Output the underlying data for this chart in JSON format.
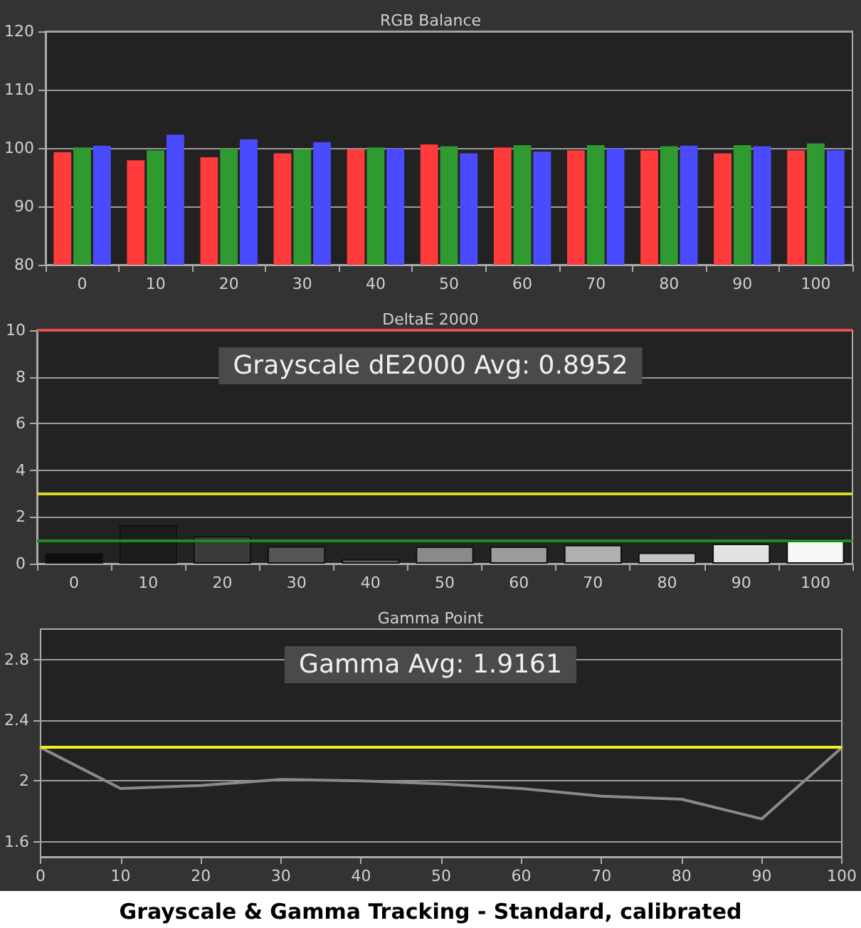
{
  "chart_data": [
    {
      "type": "bar",
      "title": "RGB Balance",
      "categories": [
        "0",
        "10",
        "20",
        "30",
        "40",
        "50",
        "60",
        "70",
        "80",
        "90",
        "100"
      ],
      "series": [
        {
          "color": "#ff3b3b",
          "values": [
            99.3,
            97.9,
            98.4,
            99.1,
            99.8,
            100.6,
            100.1,
            99.6,
            99.6,
            99.1,
            99.6
          ]
        },
        {
          "color": "#2f9a2f",
          "values": [
            100.1,
            99.6,
            99.9,
            99.8,
            100.1,
            100.3,
            100.5,
            100.5,
            100.3,
            100.5,
            100.8
          ]
        },
        {
          "color": "#4a4aff",
          "values": [
            100.4,
            102.3,
            101.5,
            101.0,
            99.9,
            99.1,
            99.4,
            99.9,
            100.4,
            100.3,
            99.6
          ]
        }
      ],
      "ylim": [
        80,
        120
      ],
      "yticks": [
        80,
        90,
        100,
        110,
        120
      ],
      "grid": "y"
    },
    {
      "type": "bar",
      "title": "DeltaE 2000",
      "categories": [
        "0",
        "10",
        "20",
        "30",
        "40",
        "50",
        "60",
        "70",
        "80",
        "90",
        "100"
      ],
      "values": [
        0.45,
        1.65,
        1.18,
        0.75,
        0.19,
        0.73,
        0.73,
        0.8,
        0.47,
        0.85,
        1.08
      ],
      "colors": [
        "#0e0e0e",
        "#1c1c1c",
        "#3a3a3a",
        "#555555",
        "#646464",
        "#8a8a8a",
        "#9c9c9c",
        "#b0b0b0",
        "#c4c4c4",
        "#e2e2e2",
        "#f7f7f7"
      ],
      "ylim": [
        0,
        10
      ],
      "yticks": [
        0,
        2,
        4,
        6,
        8,
        10
      ],
      "grid": "y",
      "ref_lines": [
        {
          "axis": "y",
          "value": 10,
          "color": "#e05050"
        },
        {
          "axis": "y",
          "value": 3,
          "color": "#d8d820"
        },
        {
          "axis": "y",
          "value": 1,
          "color": "#1f8a1f"
        }
      ],
      "annotations": [
        "Grayscale dE2000 Avg: 0.8952"
      ]
    },
    {
      "type": "line",
      "title": "Gamma Point",
      "x": [
        0,
        10,
        20,
        30,
        40,
        50,
        60,
        70,
        80,
        90,
        100
      ],
      "series": [
        {
          "color": "#8a8a8a",
          "values": [
            2.22,
            1.95,
            1.97,
            2.01,
            2.0,
            1.98,
            1.95,
            1.9,
            1.88,
            1.75,
            2.22
          ]
        }
      ],
      "xlim": [
        0,
        100
      ],
      "xticks": [
        0,
        10,
        20,
        30,
        40,
        50,
        60,
        70,
        80,
        90,
        100
      ],
      "ylim": [
        1.5,
        3.0
      ],
      "yticks": [
        1.6,
        2,
        2.4,
        2.8
      ],
      "grid": "y",
      "marker": "none",
      "ref_lines": [
        {
          "axis": "y",
          "value": 2.22,
          "color": "#f0f020"
        }
      ],
      "annotations": [
        "Gamma Avg: 1.9161",
        "Grayscale & Gamma Tracking - Standard, calibrated"
      ]
    }
  ]
}
